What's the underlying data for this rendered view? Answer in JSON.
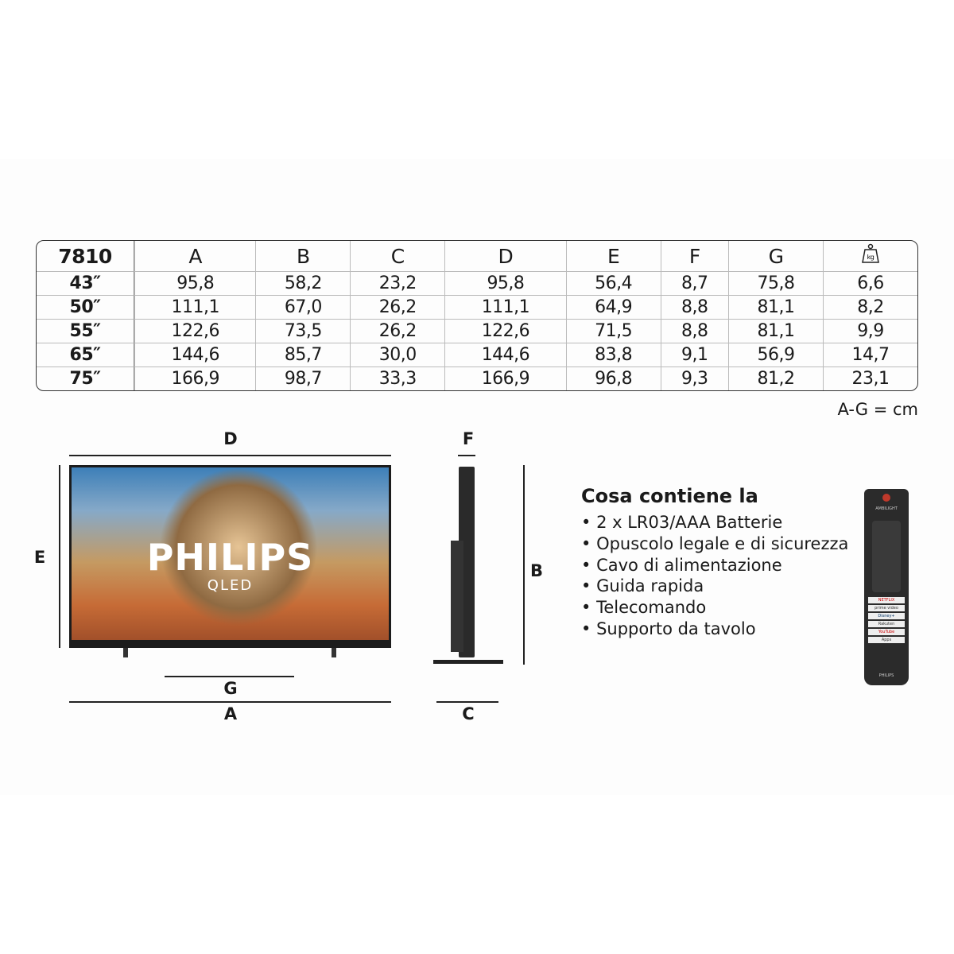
{
  "table": {
    "model": "7810",
    "columns": [
      "A",
      "B",
      "C",
      "D",
      "E",
      "F",
      "G"
    ],
    "weight_icon": "kg-weight-icon",
    "weight_icon_label": "kg",
    "rows": [
      {
        "size": "43″",
        "values": [
          "95,8",
          "58,2",
          "23,2",
          "95,8",
          "56,4",
          "8,7",
          "75,8",
          "6,6"
        ]
      },
      {
        "size": "50″",
        "values": [
          "111,1",
          "67,0",
          "26,2",
          "111,1",
          "64,9",
          "8,8",
          "81,1",
          "8,2"
        ]
      },
      {
        "size": "55″",
        "values": [
          "122,6",
          "73,5",
          "26,2",
          "122,6",
          "71,5",
          "8,8",
          "81,1",
          "9,9"
        ]
      },
      {
        "size": "65″",
        "values": [
          "144,6",
          "85,7",
          "30,0",
          "144,6",
          "83,8",
          "9,1",
          "56,9",
          "14,7"
        ]
      },
      {
        "size": "75″",
        "values": [
          "166,9",
          "98,7",
          "33,3",
          "166,9",
          "96,8",
          "9,3",
          "81,2",
          "23,1"
        ]
      }
    ],
    "unit_note": "A-G = cm"
  },
  "diagram": {
    "labels": {
      "A": "A",
      "B": "B",
      "C": "C",
      "D": "D",
      "E": "E",
      "F": "F",
      "G": "G"
    },
    "brand": "PHILIPS",
    "sub": "QLED"
  },
  "box": {
    "title": "Cosa contiene la",
    "items": [
      "2 x LR03/AAA Batterie",
      "Opuscolo legale e di sicurezza",
      "Cavo di alimentazione",
      "Guida rapida",
      "Telecomando",
      "Supporto da tavolo"
    ]
  },
  "remote": {
    "top_label": "AMBILIGHT",
    "brand": "PHILIPS",
    "apps": [
      "NETFLIX",
      "prime video",
      "Disney+",
      "Rakuten",
      "YouTube",
      "Apps"
    ]
  }
}
